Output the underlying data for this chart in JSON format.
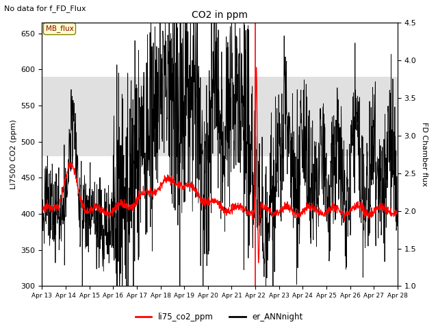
{
  "title": "CO2 in ppm",
  "suptitle": "No data for f_FD_Flux",
  "ylabel_left": "LI7500 CO2 (ppm)",
  "ylabel_right": "FD Chamber flux",
  "ylim_left": [
    300,
    665
  ],
  "ylim_right": [
    1.0,
    4.5
  ],
  "yticks_left": [
    300,
    350,
    400,
    450,
    500,
    550,
    600,
    650
  ],
  "yticks_right": [
    1.0,
    1.5,
    2.0,
    2.5,
    3.0,
    3.5,
    4.0,
    4.5
  ],
  "xticklabels": [
    "Apr 13",
    "Apr 14",
    "Apr 15",
    "Apr 16",
    "Apr 17",
    "Apr 18",
    "Apr 19",
    "Apr 20",
    "Apr 21",
    "Apr 22",
    "Apr 23",
    "Apr 24",
    "Apr 25",
    "Apr 26",
    "Apr 27",
    "Apr 28"
  ],
  "shaded_band": [
    480,
    590
  ],
  "vertical_line_day": 9,
  "legend_labels": [
    "li75_co2_ppm",
    "er_ANNnight"
  ],
  "legend_colors": [
    "red",
    "black"
  ],
  "line_color_red": "#ff0000",
  "line_color_black": "#000000",
  "background_color": "#ffffff",
  "shaded_color": "#e0e0e0",
  "figsize": [
    6.4,
    4.8
  ],
  "dpi": 100
}
